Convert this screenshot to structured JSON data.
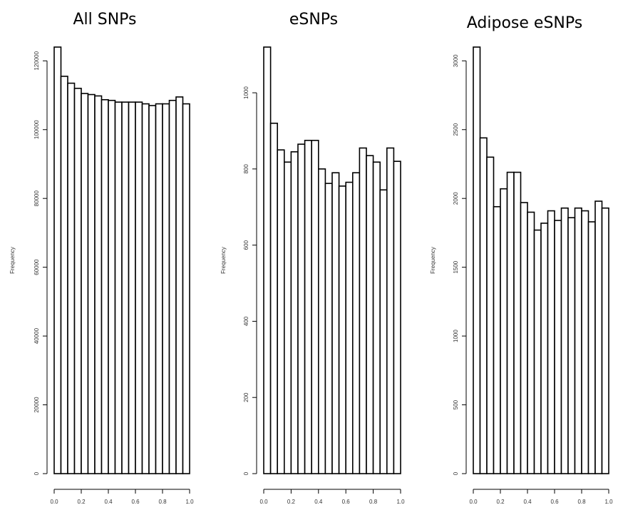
{
  "chart_data": [
    {
      "type": "bar",
      "title": "All SNPs",
      "ylabel": "Frequency",
      "xlim": [
        0.0,
        1.0
      ],
      "ylim": [
        0,
        124000
      ],
      "x_ticks": [
        "0.0",
        "0.2",
        "0.4",
        "0.6",
        "0.8",
        "1.0"
      ],
      "y_ticks": [
        "0",
        "20000",
        "40000",
        "60000",
        "80000",
        "100000",
        "120000"
      ],
      "bin_width": 0.05,
      "values": [
        124000,
        115500,
        113500,
        112000,
        110500,
        110200,
        109800,
        108700,
        108500,
        108000,
        108000,
        108000,
        108000,
        107500,
        107000,
        107500,
        107500,
        108500,
        109500,
        107500
      ]
    },
    {
      "type": "bar",
      "title": "eSNPs",
      "ylabel": "Frequency",
      "xlim": [
        0.0,
        1.0
      ],
      "ylim": [
        0,
        1120
      ],
      "x_ticks": [
        "0.0",
        "0.2",
        "0.4",
        "0.6",
        "0.8",
        "1.0"
      ],
      "y_ticks": [
        "0",
        "200",
        "400",
        "600",
        "800",
        "1000"
      ],
      "bin_width": 0.05,
      "values": [
        1120,
        920,
        850,
        818,
        845,
        865,
        875,
        875,
        800,
        762,
        790,
        755,
        765,
        790,
        855,
        835,
        818,
        745,
        855,
        820
      ]
    },
    {
      "type": "bar",
      "title": "Adipose eSNPs",
      "ylabel": "Frequency",
      "xlim": [
        0.0,
        1.0
      ],
      "ylim": [
        0,
        3100
      ],
      "x_ticks": [
        "0.0",
        "0.2",
        "0.4",
        "0.6",
        "0.8",
        "1.0"
      ],
      "y_ticks": [
        "0",
        "500",
        "1000",
        "1500",
        "2000",
        "2500",
        "3000"
      ],
      "bin_width": 0.05,
      "values": [
        3100,
        2440,
        2300,
        1940,
        2070,
        2190,
        2190,
        1970,
        1900,
        1770,
        1820,
        1910,
        1840,
        1930,
        1860,
        1930,
        1910,
        1830,
        1980,
        1930
      ]
    }
  ]
}
